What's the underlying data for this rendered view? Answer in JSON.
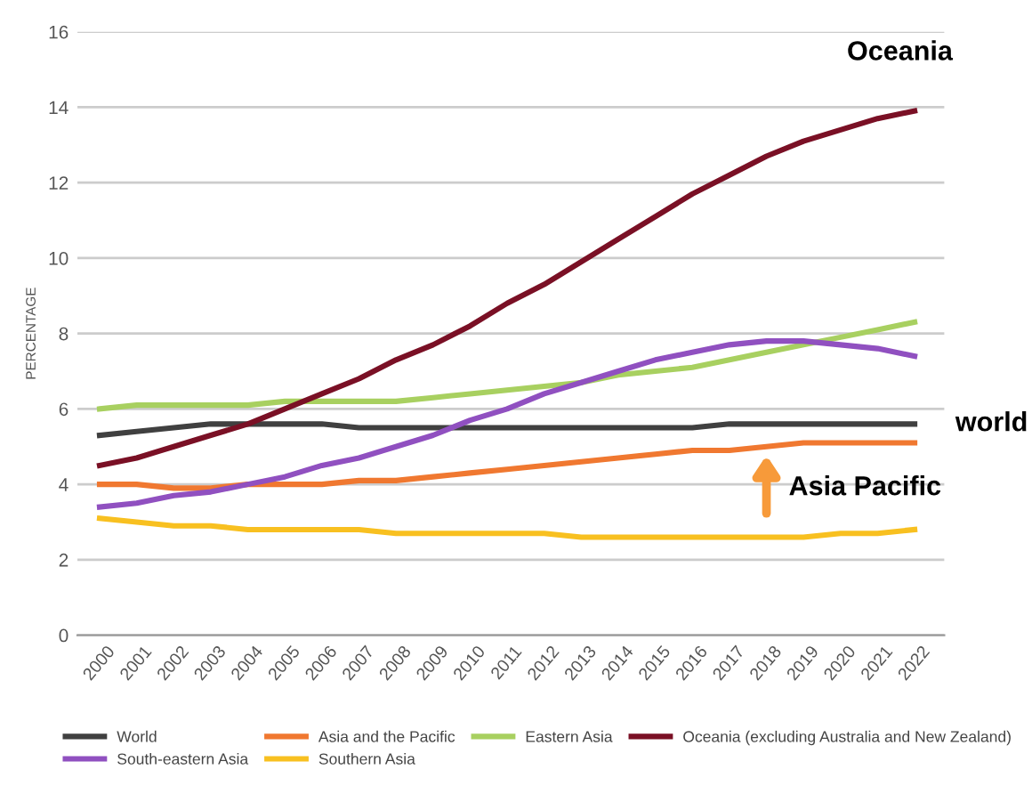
{
  "chart_data": {
    "type": "line",
    "ylabel": "PERCENTAGE",
    "categories": [
      "2000",
      "2001",
      "2002",
      "2003",
      "2004",
      "2005",
      "2006",
      "2007",
      "2008",
      "2009",
      "2010",
      "2011",
      "2012",
      "2013",
      "2014",
      "2015",
      "2016",
      "2017",
      "2018",
      "2019",
      "2020",
      "2021",
      "2022"
    ],
    "ylim": [
      0,
      16
    ],
    "yticks": [
      0,
      2,
      4,
      6,
      8,
      10,
      12,
      14,
      16
    ],
    "grid": "y",
    "legend": "bottom",
    "marker": "none",
    "line_style": "solid",
    "series": [
      {
        "name": "World",
        "color": "#404040",
        "values": [
          5.3,
          5.4,
          5.5,
          5.6,
          5.6,
          5.6,
          5.6,
          5.5,
          5.5,
          5.5,
          5.5,
          5.5,
          5.5,
          5.5,
          5.5,
          5.5,
          5.5,
          5.6,
          5.6,
          5.6,
          5.6,
          5.6,
          5.6
        ]
      },
      {
        "name": "Asia and the Pacific",
        "color": "#f07830",
        "values": [
          4.0,
          4.0,
          3.9,
          3.9,
          4.0,
          4.0,
          4.0,
          4.1,
          4.1,
          4.2,
          4.3,
          4.4,
          4.5,
          4.6,
          4.7,
          4.8,
          4.9,
          4.9,
          5.0,
          5.1,
          5.1,
          5.1,
          5.1
        ]
      },
      {
        "name": "Eastern Asia",
        "color": "#a8d060",
        "values": [
          6.0,
          6.1,
          6.1,
          6.1,
          6.1,
          6.2,
          6.2,
          6.2,
          6.2,
          6.3,
          6.4,
          6.5,
          6.6,
          6.7,
          6.9,
          7.0,
          7.1,
          7.3,
          7.5,
          7.7,
          7.9,
          8.1,
          8.3
        ]
      },
      {
        "name": "Oceania (excluding Australia and New Zealand)",
        "color": "#7a1025",
        "values": [
          4.5,
          4.7,
          5.0,
          5.3,
          5.6,
          6.0,
          6.4,
          6.8,
          7.3,
          7.7,
          8.2,
          8.8,
          9.3,
          9.9,
          10.5,
          11.1,
          11.7,
          12.2,
          12.7,
          13.1,
          13.4,
          13.7,
          13.9
        ]
      },
      {
        "name": "South-eastern Asia",
        "color": "#9050c0",
        "values": [
          3.4,
          3.5,
          3.7,
          3.8,
          4.0,
          4.2,
          4.5,
          4.7,
          5.0,
          5.3,
          5.7,
          6.0,
          6.4,
          6.7,
          7.0,
          7.3,
          7.5,
          7.7,
          7.8,
          7.8,
          7.7,
          7.6,
          7.4
        ]
      },
      {
        "name": "Southern Asia",
        "color": "#f8c020",
        "values": [
          3.1,
          3.0,
          2.9,
          2.9,
          2.8,
          2.8,
          2.8,
          2.8,
          2.7,
          2.7,
          2.7,
          2.7,
          2.7,
          2.6,
          2.6,
          2.6,
          2.6,
          2.6,
          2.6,
          2.6,
          2.7,
          2.7,
          2.8
        ]
      }
    ],
    "annotations": [
      {
        "text": "Oceania",
        "x": "2022",
        "y": 13.9
      },
      {
        "text": "world",
        "x": "2022",
        "y": 5.6
      },
      {
        "text": "Asia Pacific",
        "x": "2018",
        "y": 5.0
      }
    ]
  }
}
